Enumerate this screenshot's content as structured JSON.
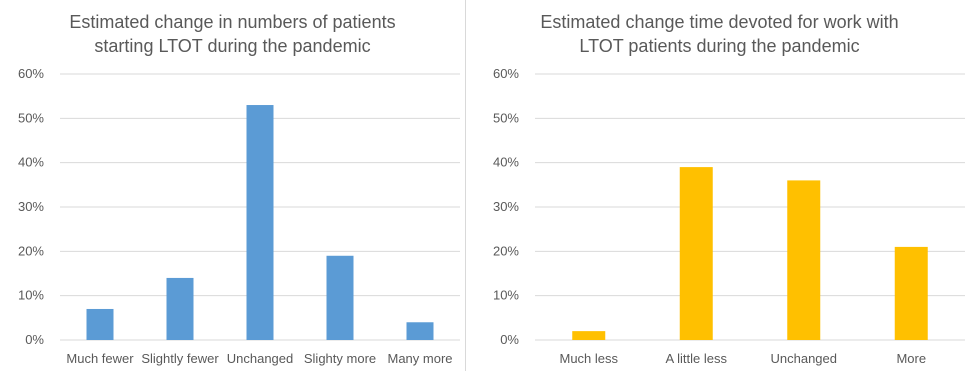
{
  "chart_data": [
    {
      "type": "bar",
      "title_lines": [
        "Estimated change in numbers of patients",
        "starting LTOT during the pandemic"
      ],
      "categories": [
        "Much fewer",
        "Slightly fewer",
        "Unchanged",
        "Slighty more",
        "Many more"
      ],
      "values": [
        7,
        14,
        53,
        19,
        4
      ],
      "xlabel": "",
      "ylabel": "",
      "ylim": [
        0,
        60
      ],
      "yticks": [
        "0%",
        "10%",
        "20%",
        "30%",
        "40%",
        "50%",
        "60%"
      ],
      "grid": true,
      "legend": "none",
      "color": "#5b9bd5"
    },
    {
      "type": "bar",
      "title_lines": [
        "Estimated change time devoted for work with",
        "LTOT patients during the pandemic"
      ],
      "categories": [
        "Much less",
        "A little less",
        "Unchanged",
        "More"
      ],
      "values": [
        2,
        39,
        36,
        21
      ],
      "xlabel": "",
      "ylabel": "",
      "ylim": [
        0,
        60
      ],
      "yticks": [
        "0%",
        "10%",
        "20%",
        "30%",
        "40%",
        "50%",
        "60%"
      ],
      "grid": true,
      "legend": "none",
      "color": "#ffc000"
    }
  ]
}
